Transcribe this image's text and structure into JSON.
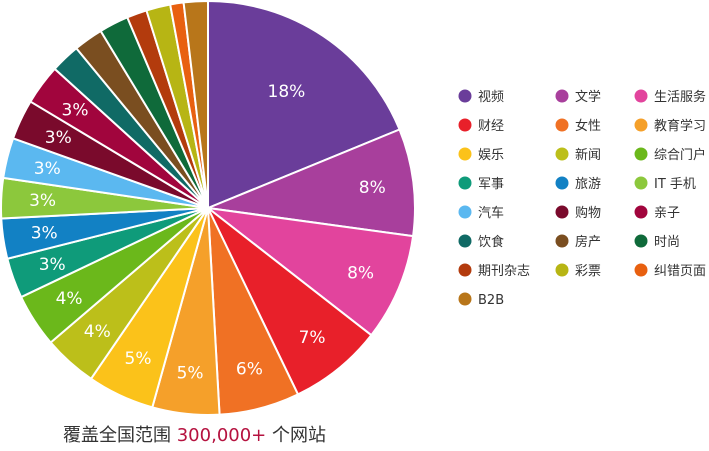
{
  "chart_data": {
    "type": "pie",
    "categories": [
      "视频",
      "文学",
      "生活服务",
      "财经",
      "女性",
      "教育学习",
      "娱乐",
      "新闻",
      "综合门户",
      "军事",
      "旅游",
      "IT 手机",
      "汽车",
      "购物",
      "亲子",
      "饮食",
      "房产",
      "时尚",
      "期刊杂志",
      "彩票",
      "纠错页面",
      "B2B"
    ],
    "values": [
      18,
      8,
      8,
      7,
      6,
      5,
      5,
      4,
      4,
      3,
      3,
      3,
      3,
      3,
      3,
      2.2,
      2.2,
      2.2,
      1.5,
      1.8,
      1.0,
      1.8
    ],
    "labels": [
      "18%",
      "8%",
      "8%",
      "7%",
      "6%",
      "5%",
      "5%",
      "4%",
      "4%",
      "3%",
      "3%",
      "3%",
      "3%",
      "3%",
      "3%",
      "",
      "",
      "",
      "",
      "",
      "",
      ""
    ],
    "colors": [
      "#6a3d9a",
      "#a83f9c",
      "#e2449d",
      "#e8202a",
      "#f07124",
      "#f5a02a",
      "#fbc21a",
      "#bcbf1a",
      "#6bb81b",
      "#0f9b7a",
      "#1281c4",
      "#8cc83c",
      "#5bb8f0",
      "#7a0a2c",
      "#a1053d",
      "#106a65",
      "#7a4e20",
      "#0f6a3a",
      "#b33b0d",
      "#b7b514",
      "#e86010",
      "#b8761a"
    ],
    "legend_position": "right"
  },
  "caption": {
    "prefix": "覆盖全国范围 ",
    "number": "300,000+",
    "suffix": " 个网站"
  }
}
